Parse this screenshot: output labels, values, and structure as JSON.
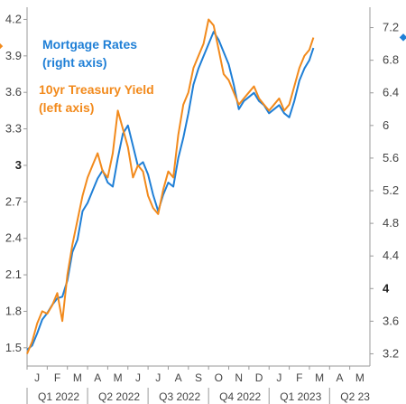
{
  "chart_data": {
    "type": "line",
    "left_axis": {
      "ticks": [
        1.5,
        1.8,
        2.1,
        2.4,
        2.7,
        3,
        3.3,
        3.6,
        3.9,
        4.2
      ],
      "tick_labels": [
        "1.5",
        "1.8",
        "2.1",
        "2.4",
        "2.7",
        "3",
        "3.3",
        "3.6",
        "3.9",
        "4.2"
      ],
      "bold_tick": "3",
      "ylim": [
        1.35,
        4.3
      ]
    },
    "right_axis": {
      "ticks": [
        3.2,
        3.6,
        4,
        4.4,
        4.8,
        5.2,
        5.6,
        6,
        6.4,
        6.8,
        7.2
      ],
      "tick_labels": [
        "3.2",
        "3.6",
        "4",
        "4.4",
        "4.8",
        "5.2",
        "5.6",
        "6",
        "6.4",
        "6.8",
        "7.2"
      ],
      "bold_tick": "4",
      "ylim": [
        3.05,
        7.45
      ]
    },
    "x_axis": {
      "months": [
        "J",
        "F",
        "M",
        "A",
        "M",
        "J",
        "J",
        "A",
        "S",
        "O",
        "N",
        "D",
        "J",
        "F",
        "M",
        "A",
        "M"
      ],
      "quarters": [
        "Q1 2022",
        "Q2 2022",
        "Q3 2022",
        "Q4 2022",
        "Q1 2023",
        "Q2 23"
      ],
      "xlim": [
        0,
        17
      ]
    },
    "series": [
      {
        "name": "Mortgage Rates",
        "legend_line2": "(right axis)",
        "axis": "right",
        "color": "#1f7fd6",
        "x": [
          0,
          0.25,
          0.5,
          0.75,
          1.0,
          1.25,
          1.5,
          1.75,
          2.0,
          2.25,
          2.5,
          2.75,
          3.0,
          3.25,
          3.5,
          3.75,
          4.0,
          4.25,
          4.5,
          4.75,
          5.0,
          5.25,
          5.5,
          5.75,
          6.0,
          6.25,
          6.5,
          6.75,
          7.0,
          7.25,
          7.5,
          7.75,
          8.0,
          8.25,
          8.5,
          8.75,
          9.0,
          9.25,
          9.5,
          9.75,
          10.0,
          10.25,
          10.5,
          10.75,
          11.0,
          11.25,
          11.5,
          11.75,
          12.0,
          12.25,
          12.5,
          12.75,
          13.0,
          13.25,
          13.5,
          13.75,
          14.0,
          14.2
        ],
        "values": [
          3.25,
          3.3,
          3.45,
          3.62,
          3.7,
          3.8,
          3.88,
          3.9,
          4.1,
          4.45,
          4.6,
          4.95,
          5.05,
          5.2,
          5.35,
          5.45,
          5.3,
          5.25,
          5.6,
          5.9,
          6.0,
          5.75,
          5.5,
          5.55,
          5.4,
          5.15,
          4.95,
          5.15,
          5.3,
          5.25,
          5.6,
          5.85,
          6.15,
          6.5,
          6.7,
          6.85,
          7.0,
          7.15,
          7.05,
          6.9,
          6.75,
          6.5,
          6.2,
          6.3,
          6.35,
          6.4,
          6.3,
          6.25,
          6.15,
          6.2,
          6.25,
          6.15,
          6.1,
          6.3,
          6.55,
          6.7,
          6.8,
          6.95
        ]
      },
      {
        "name": "10yr Treasury Yield",
        "legend_line2": "(left axis)",
        "axis": "left",
        "color": "#f28a1c",
        "x": [
          0,
          0.25,
          0.5,
          0.75,
          1.0,
          1.25,
          1.5,
          1.75,
          2.0,
          2.25,
          2.5,
          2.75,
          3.0,
          3.25,
          3.5,
          3.75,
          4.0,
          4.25,
          4.5,
          4.75,
          5.0,
          5.25,
          5.5,
          5.75,
          6.0,
          6.25,
          6.5,
          6.75,
          7.0,
          7.25,
          7.5,
          7.75,
          8.0,
          8.25,
          8.5,
          8.75,
          9.0,
          9.25,
          9.5,
          9.75,
          10.0,
          10.25,
          10.5,
          10.75,
          11.0,
          11.25,
          11.5,
          11.75,
          12.0,
          12.25,
          12.5,
          12.75,
          13.0,
          13.25,
          13.5,
          13.75,
          14.0,
          14.2
        ],
        "values": [
          1.45,
          1.55,
          1.7,
          1.8,
          1.78,
          1.85,
          1.95,
          1.72,
          2.1,
          2.35,
          2.55,
          2.75,
          2.9,
          3.0,
          3.1,
          2.95,
          2.9,
          3.1,
          3.45,
          3.3,
          3.15,
          2.9,
          3.0,
          2.95,
          2.75,
          2.65,
          2.6,
          2.8,
          2.95,
          2.9,
          3.25,
          3.5,
          3.6,
          3.8,
          3.9,
          4.0,
          4.2,
          4.15,
          3.95,
          3.75,
          3.7,
          3.6,
          3.5,
          3.55,
          3.6,
          3.65,
          3.55,
          3.5,
          3.45,
          3.5,
          3.55,
          3.45,
          3.5,
          3.65,
          3.8,
          3.9,
          3.95,
          4.05
        ]
      }
    ]
  }
}
